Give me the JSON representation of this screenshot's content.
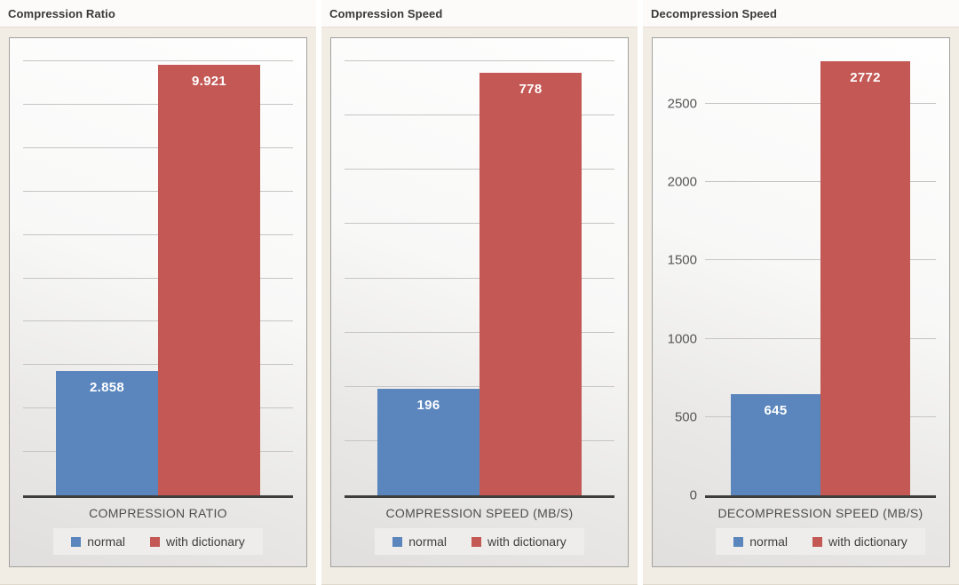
{
  "panels": [
    {
      "header": "Compression Ratio"
    },
    {
      "header": "Compression Speed"
    },
    {
      "header": "Decompression Speed"
    }
  ],
  "chart_data": [
    {
      "type": "bar",
      "title": "Compression Ratio",
      "xlabel": "COMPRESSION RATIO",
      "categories": [
        "normal",
        "with dictionary"
      ],
      "values": [
        2.858,
        9.921
      ],
      "value_labels": [
        "2.858",
        "9.921"
      ],
      "colors": [
        "#5a86bd",
        "#c35854"
      ],
      "ylim": [
        0,
        10
      ],
      "gridline_step": 1,
      "gridline_max": 10,
      "grid": true,
      "y_tick_labels": [],
      "legend": [
        "normal",
        "with dictionary"
      ],
      "legend_position": "bottom"
    },
    {
      "type": "bar",
      "title": "Compression Speed",
      "xlabel": "COMPRESSION SPEED (MB/S)",
      "categories": [
        "normal",
        "with dictionary"
      ],
      "values": [
        196,
        778
      ],
      "value_labels": [
        "196",
        "778"
      ],
      "colors": [
        "#5a86bd",
        "#c35854"
      ],
      "ylim": [
        0,
        800
      ],
      "gridline_step": 100,
      "gridline_max": 800,
      "grid": true,
      "y_tick_labels": [],
      "legend": [
        "normal",
        "with dictionary"
      ],
      "legend_position": "bottom"
    },
    {
      "type": "bar",
      "title": "Decompression Speed",
      "xlabel": "DECOMPRESSION SPEED (MB/S)",
      "categories": [
        "normal",
        "with dictionary"
      ],
      "values": [
        645,
        2772
      ],
      "value_labels": [
        "645",
        "2772"
      ],
      "colors": [
        "#5a86bd",
        "#c35854"
      ],
      "ylim": [
        0,
        2772
      ],
      "gridline_step": 500,
      "gridline_max": 2500,
      "grid": true,
      "y_tick_labels": [
        "0",
        "500",
        "1000",
        "1500",
        "2000",
        "2500"
      ],
      "legend": [
        "normal",
        "with dictionary"
      ],
      "legend_position": "bottom"
    }
  ],
  "colors": {
    "bar_normal": "#5a86bd",
    "bar_with_dictionary": "#c35854",
    "panel_body_bg": "#f1ede5",
    "header_bg": "#fcfbf9",
    "axis_line": "#3d3d3d",
    "gridline": "#c6c5c3"
  }
}
